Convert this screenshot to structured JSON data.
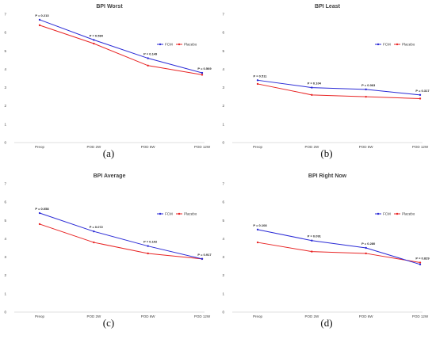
{
  "colors": {
    "fcm": "#2a2ad6",
    "placebo": "#e82424",
    "axis": "#bfbfbf",
    "text": "#404040"
  },
  "chart_data": [
    {
      "type": "line",
      "title": "BPI Worst",
      "caption": "(a)",
      "categories": [
        "Preop",
        "POD 2W",
        "POD 6W",
        "POD 12W"
      ],
      "ylim": [
        0,
        7
      ],
      "yticks": [
        "0",
        "1",
        "2",
        "3",
        "4",
        "5",
        "6",
        "7"
      ],
      "legend_position": "right",
      "series": [
        {
          "name": "FCM",
          "color": "#2a2ad6",
          "values": [
            6.7,
            5.6,
            4.6,
            3.8
          ]
        },
        {
          "name": "Placebo",
          "color": "#e82424",
          "values": [
            6.4,
            5.4,
            4.2,
            3.7
          ]
        }
      ],
      "annotations": [
        "P = 0.213",
        "P = 0.584",
        "P = 0.149",
        "P = 0.569"
      ]
    },
    {
      "type": "line",
      "title": "BPI Least",
      "caption": "(b)",
      "categories": [
        "Preop",
        "POD 2W",
        "POD 6W",
        "POD 12W"
      ],
      "ylim": [
        0,
        7
      ],
      "yticks": [
        "0",
        "1",
        "2",
        "3",
        "4",
        "5",
        "6",
        "7"
      ],
      "legend_position": "right",
      "series": [
        {
          "name": "FCM",
          "color": "#2a2ad6",
          "values": [
            3.4,
            3.0,
            2.9,
            2.6
          ]
        },
        {
          "name": "Placebo",
          "color": "#e82424",
          "values": [
            3.2,
            2.6,
            2.5,
            2.4
          ]
        }
      ],
      "annotations": [
        "P = 0.511",
        "P = 0.104",
        "P = 0.063",
        "P = 0.317"
      ]
    },
    {
      "type": "line",
      "title": "BPI Average",
      "caption": "(c)",
      "categories": [
        "Preop",
        "POD 2W",
        "POD 6W",
        "POD 12W"
      ],
      "ylim": [
        0,
        7
      ],
      "yticks": [
        "0",
        "1",
        "2",
        "3",
        "4",
        "5",
        "6",
        "7"
      ],
      "legend_position": "right",
      "series": [
        {
          "name": "FCM",
          "color": "#2a2ad6",
          "values": [
            5.4,
            4.4,
            3.6,
            2.9
          ]
        },
        {
          "name": "Placebo",
          "color": "#e82424",
          "values": [
            4.8,
            3.8,
            3.2,
            2.9
          ]
        }
      ],
      "annotations": [
        "P = 0.058",
        "P = 0.072",
        "P = 0.102",
        "P = 0.917"
      ]
    },
    {
      "type": "line",
      "title": "BPI Right Now",
      "caption": "(d)",
      "categories": [
        "Preop",
        "POD 2W",
        "POD 6W",
        "POD 12W"
      ],
      "ylim": [
        0,
        7
      ],
      "yticks": [
        "0",
        "1",
        "2",
        "3",
        "4",
        "5",
        "6",
        "7"
      ],
      "legend_position": "right",
      "series": [
        {
          "name": "FCM",
          "color": "#2a2ad6",
          "values": [
            4.5,
            3.9,
            3.5,
            2.6
          ]
        },
        {
          "name": "Placebo",
          "color": "#e82424",
          "values": [
            3.8,
            3.3,
            3.2,
            2.7
          ]
        }
      ],
      "annotations": [
        "P = 0.108",
        "P = 0.091",
        "P = 0.280",
        "P = 0.829"
      ]
    }
  ]
}
